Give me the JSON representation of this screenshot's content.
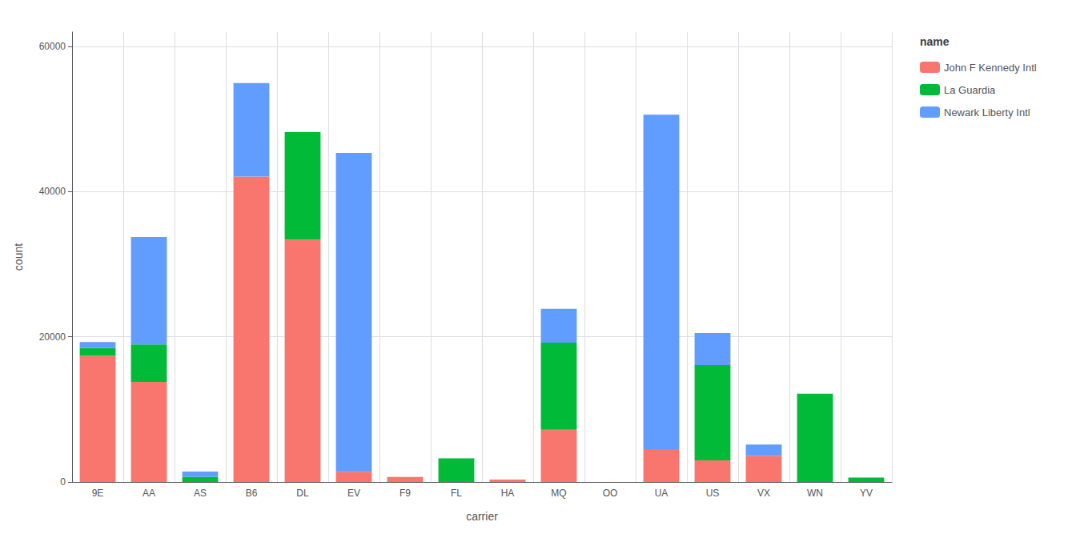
{
  "chart_data": {
    "type": "bar",
    "stacked": true,
    "xlabel": "carrier",
    "ylabel": "count",
    "legend_title": "name",
    "categories": [
      "9E",
      "AA",
      "AS",
      "B6",
      "DL",
      "EV",
      "F9",
      "FL",
      "HA",
      "MQ",
      "OO",
      "UA",
      "US",
      "VX",
      "WN",
      "YV"
    ],
    "series": [
      {
        "name": "John F Kennedy Intl",
        "color": "#F8766D",
        "values": [
          17416,
          13783,
          0,
          42076,
          33395,
          1408,
          685,
          0,
          342,
          7193,
          0,
          4534,
          2978,
          3596,
          0,
          0
        ]
      },
      {
        "name": "La Guardia",
        "color": "#00BA38",
        "values": [
          1044,
          5162,
          714,
          0,
          14814,
          0,
          0,
          3260,
          0,
          12009,
          0,
          0,
          13136,
          0,
          12173,
          601
        ]
      },
      {
        "name": "Newark Liberty Intl",
        "color": "#619CFF",
        "values": [
          822,
          14810,
          714,
          12903,
          0,
          43939,
          0,
          0,
          0,
          4648,
          0,
          46087,
          4405,
          1566,
          0,
          0
        ]
      }
    ],
    "ylim": [
      0,
      62000
    ],
    "yticks": [
      0,
      20000,
      40000,
      60000
    ],
    "grid": true,
    "legend": "right"
  }
}
